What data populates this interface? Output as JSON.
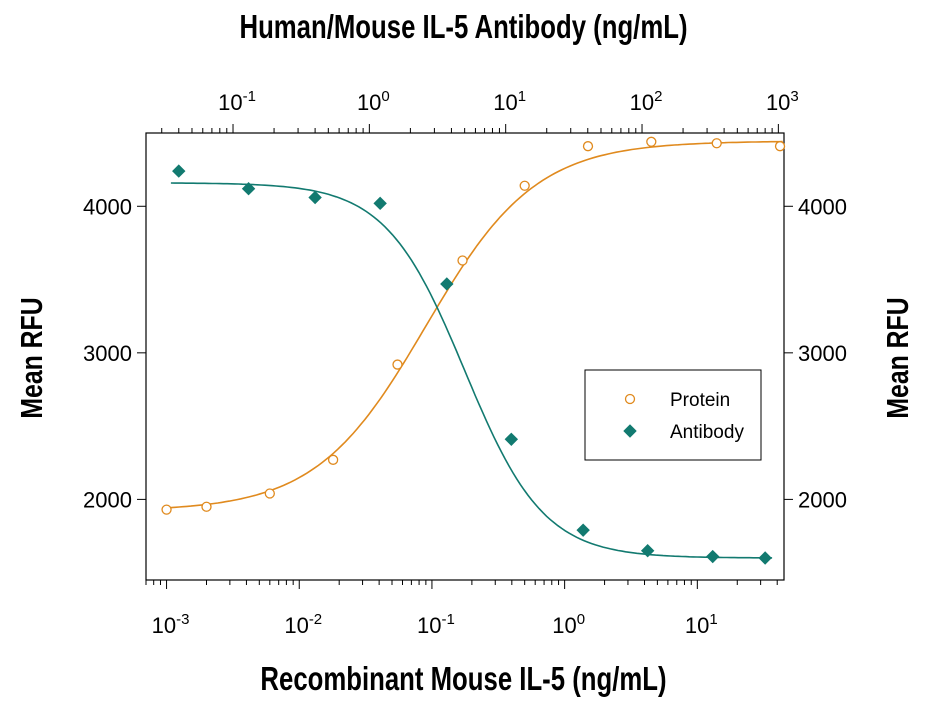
{
  "chart_data": {
    "type": "scatter",
    "title_top_axis": "Human/Mouse IL-5 Antibody (ng/mL)",
    "xlabel": "Recombinant Mouse IL-5 (ng/mL)",
    "ylabel_left": "Mean RFU",
    "ylabel_right": "Mean RFU",
    "x_scale": "log",
    "x_bottom_range": [
      0.0007,
      45
    ],
    "x_bottom_ticks": [
      {
        "base": "10",
        "exp": "-3",
        "value": 0.001
      },
      {
        "base": "10",
        "exp": "-2",
        "value": 0.01
      },
      {
        "base": "10",
        "exp": "-1",
        "value": 0.1
      },
      {
        "base": "10",
        "exp": "0",
        "value": 1
      },
      {
        "base": "10",
        "exp": "1",
        "value": 10
      }
    ],
    "x_top_range": [
      0.023,
      1100
    ],
    "x_top_ticks": [
      {
        "base": "10",
        "exp": "-1",
        "value": 0.1
      },
      {
        "base": "10",
        "exp": "0",
        "value": 1
      },
      {
        "base": "10",
        "exp": "1",
        "value": 10
      },
      {
        "base": "10",
        "exp": "2",
        "value": 100
      },
      {
        "base": "10",
        "exp": "3",
        "value": 1000
      }
    ],
    "ylim": [
      1450,
      4500
    ],
    "y_ticks": [
      "2000",
      "3000",
      "4000"
    ],
    "grid": false,
    "legend_position": "right",
    "series": [
      {
        "name": "Protein",
        "axis": "bottom",
        "marker": "open-circle",
        "color": "#E08A1E",
        "x": [
          0.001,
          0.002,
          0.006,
          0.018,
          0.055,
          0.17,
          0.5,
          1.5,
          4.5,
          14,
          42
        ],
        "y": [
          1930,
          1950,
          2040,
          2270,
          2920,
          3630,
          4140,
          4410,
          4440,
          4430,
          4410
        ],
        "fit": {
          "bottom": 1920,
          "top": 4445,
          "ec50": 0.09,
          "hill": 1.05
        }
      },
      {
        "name": "Antibody",
        "axis": "top",
        "marker": "filled-diamond",
        "color": "#127A70",
        "x": [
          0.04,
          0.13,
          0.4,
          1.2,
          3.7,
          11,
          37,
          110,
          330,
          800
        ],
        "y": [
          4240,
          4120,
          4060,
          4020,
          3470,
          2410,
          1790,
          1650,
          1610,
          1600
        ],
        "fit": {
          "bottom": 1600,
          "top": 4160,
          "ec50": 5.0,
          "hill": 1.5
        }
      }
    ]
  }
}
